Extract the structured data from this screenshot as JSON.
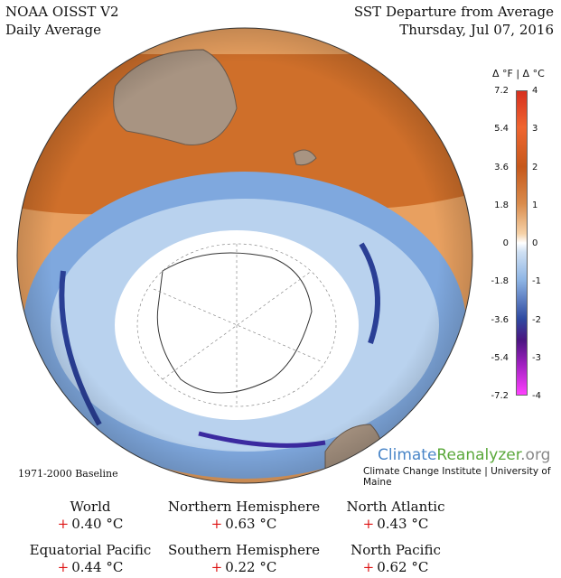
{
  "header": {
    "left_line1": "NOAA OISST V2",
    "left_line2": "Daily Average",
    "right_line1": "SST Departure from Average",
    "right_line2": "Thursday, Jul 07, 2016"
  },
  "legend": {
    "units": "Δ °F  |  Δ °C",
    "f_ticks": [
      "7.2",
      "5.4",
      "3.6",
      "1.8",
      "0",
      "-1.8",
      "-3.6",
      "-5.4",
      "-7.2"
    ],
    "c_ticks": [
      "4",
      "3",
      "2",
      "1",
      "0",
      "-1",
      "-2",
      "-3",
      "-4"
    ]
  },
  "baseline": "1971-2000 Baseline",
  "branding": {
    "name_part1": "Climate",
    "name_part2": "Reanalyzer",
    "name_part3": ".org",
    "institute": "Climate Change Institute | University of Maine"
  },
  "stats": [
    {
      "label": "World",
      "sign": "+",
      "value": "0.40 °C"
    },
    {
      "label": "Northern Hemisphere",
      "sign": "+",
      "value": "0.63 °C"
    },
    {
      "label": "North Atlantic",
      "sign": "+",
      "value": "0.43 °C"
    },
    {
      "label": "Equatorial Pacific",
      "sign": "+",
      "value": "0.44 °C"
    },
    {
      "label": "Southern Hemisphere",
      "sign": "+",
      "value": "0.22 °C"
    },
    {
      "label": "North Pacific",
      "sign": "+",
      "value": "0.62 °C"
    }
  ],
  "colors": {
    "warm": "#c8651f",
    "cool": "#5b8fd6",
    "land": "#a89482",
    "ice": "#ffffff"
  }
}
